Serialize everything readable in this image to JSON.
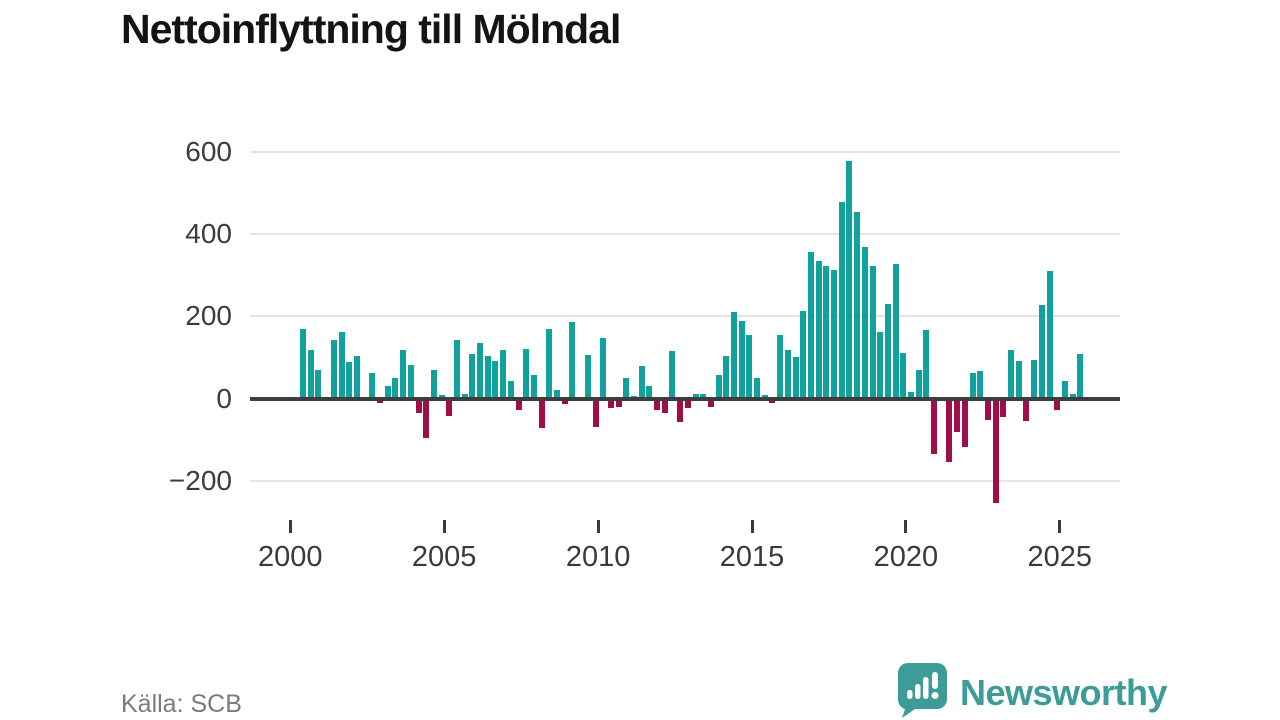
{
  "header": {
    "title": "Nettoinflyttning till Mölndal"
  },
  "footer": {
    "source": "Källa: SCB",
    "brand": "Newsworthy"
  },
  "chart_data": {
    "type": "bar",
    "title": "Nettoinflyttning till Mölndal",
    "xlabel": "",
    "ylabel": "",
    "x_unit": "quarter",
    "ylim": [
      -300,
      640
    ],
    "grid": "horizontal",
    "legend_position": "none",
    "y_ticks": [
      {
        "value": 600,
        "label": "600"
      },
      {
        "value": 400,
        "label": "400"
      },
      {
        "value": 200,
        "label": "200"
      },
      {
        "value": 0,
        "label": "0"
      },
      {
        "value": -200,
        "label": "−200"
      }
    ],
    "x_ticks": [
      {
        "year": 2000,
        "label": "2000"
      },
      {
        "year": 2005,
        "label": "2005"
      },
      {
        "year": 2010,
        "label": "2010"
      },
      {
        "year": 2015,
        "label": "2015"
      },
      {
        "year": 2020,
        "label": "2020"
      },
      {
        "year": 2025,
        "label": "2025"
      }
    ],
    "colors": {
      "positive": "#11a29d",
      "negative": "#a00e49",
      "zero_line": "#3d3d3d",
      "grid_line": "#e4e4e4",
      "axis_text": "#3a3a3a"
    },
    "values_by_year": [
      {
        "year": 2000,
        "quarters": [
          0,
          170,
          117,
          70
        ]
      },
      {
        "year": 2001,
        "quarters": [
          0,
          143,
          162,
          89
        ]
      },
      {
        "year": 2002,
        "quarters": [
          103,
          0,
          62,
          -10
        ]
      },
      {
        "year": 2003,
        "quarters": [
          30,
          51,
          117,
          81
        ]
      },
      {
        "year": 2004,
        "quarters": [
          -35,
          -96,
          70,
          8
        ]
      },
      {
        "year": 2005,
        "quarters": [
          -43,
          143,
          12,
          107
        ]
      },
      {
        "year": 2006,
        "quarters": [
          135,
          103,
          91,
          119
        ]
      },
      {
        "year": 2007,
        "quarters": [
          42,
          -28,
          121,
          57
        ]
      },
      {
        "year": 2008,
        "quarters": [
          -71,
          170,
          20,
          -14
        ]
      },
      {
        "year": 2009,
        "quarters": [
          186,
          0,
          105,
          -69
        ]
      },
      {
        "year": 2010,
        "quarters": [
          148,
          -24,
          -20,
          51
        ]
      },
      {
        "year": 2011,
        "quarters": [
          6,
          78,
          30,
          -28
        ]
      },
      {
        "year": 2012,
        "quarters": [
          -35,
          116,
          -57,
          -24
        ]
      },
      {
        "year": 2013,
        "quarters": [
          11,
          11,
          -20,
          57
        ]
      },
      {
        "year": 2014,
        "quarters": [
          103,
          210,
          188,
          154
        ]
      },
      {
        "year": 2015,
        "quarters": [
          51,
          8,
          -10,
          154
        ]
      },
      {
        "year": 2016,
        "quarters": [
          117,
          100,
          213,
          356
        ]
      },
      {
        "year": 2017,
        "quarters": [
          335,
          321,
          313,
          477
        ]
      },
      {
        "year": 2018,
        "quarters": [
          578,
          454,
          368,
          323
        ]
      },
      {
        "year": 2019,
        "quarters": [
          162,
          230,
          326,
          110
        ]
      },
      {
        "year": 2020,
        "quarters": [
          15,
          70,
          166,
          -135
        ]
      },
      {
        "year": 2021,
        "quarters": [
          0,
          -155,
          -81,
          -119
        ]
      },
      {
        "year": 2022,
        "quarters": [
          61,
          67,
          -52,
          -254
        ]
      },
      {
        "year": 2023,
        "quarters": [
          -46,
          119,
          91,
          -55
        ]
      },
      {
        "year": 2024,
        "quarters": [
          93,
          228,
          309,
          -27
        ]
      },
      {
        "year": 2025,
        "quarters": [
          42,
          12,
          109
        ]
      }
    ]
  }
}
